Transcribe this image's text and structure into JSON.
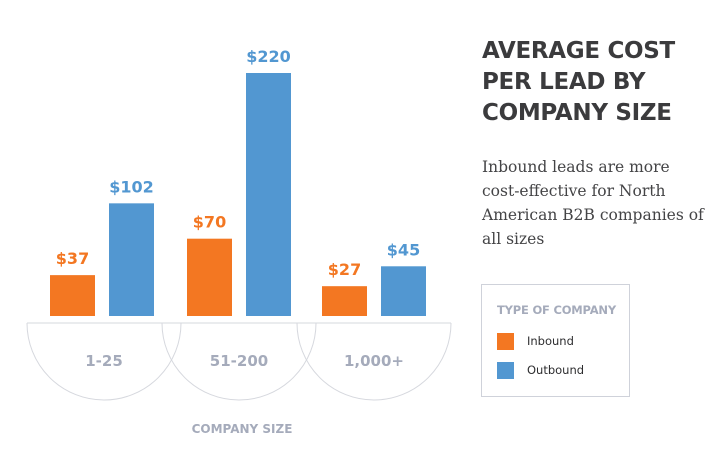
{
  "chart_data": {
    "type": "bar",
    "title": "AVERAGE COST PER LEAD BY COMPANY SIZE",
    "subtitle": "Inbound leads are more cost-effective for North American B2B companies of all sizes",
    "xlabel": "COMPANY SIZE",
    "ylabel": "",
    "categories": [
      "1-25",
      "51-200",
      "1,000+"
    ],
    "series": [
      {
        "name": "Inbound",
        "color": "#f37722",
        "values": [
          37,
          70,
          27
        ],
        "labels": [
          "$37",
          "$70",
          "$27"
        ]
      },
      {
        "name": "Outbound",
        "color": "#5297d1",
        "values": [
          102,
          220,
          45
        ],
        "labels": [
          "$102",
          "$220",
          "$45"
        ]
      }
    ],
    "ylim": [
      0,
      220
    ],
    "grid": false,
    "legend": {
      "title": "TYPE OF COMPANY",
      "placement": "right"
    }
  },
  "colors": {
    "inbound": "#f37722",
    "outbound": "#5297d1",
    "axis_text": "#a5abbb",
    "title_text": "#3b3b3d"
  }
}
